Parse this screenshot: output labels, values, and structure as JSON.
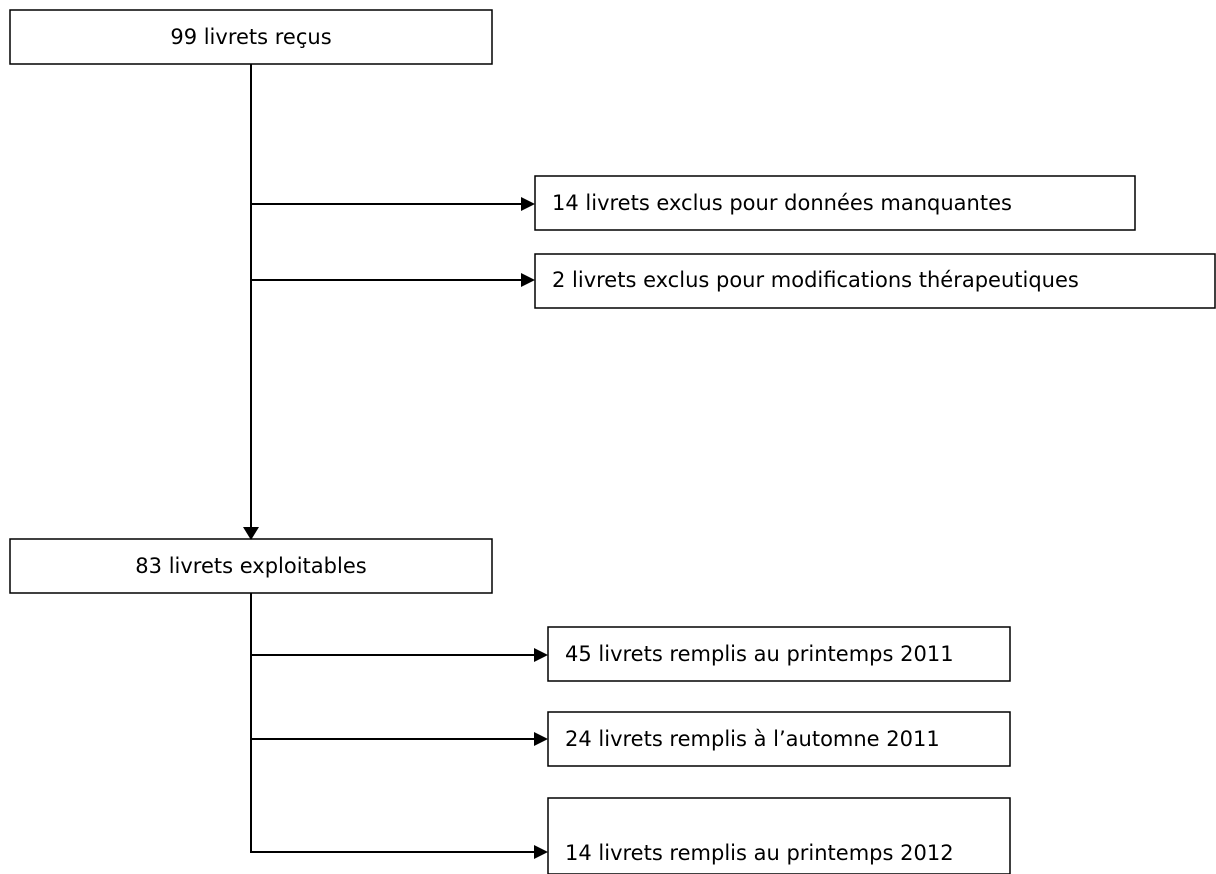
{
  "nodes": [
    {
      "label": "99 livrets reçus"
    },
    {
      "label": "14 livrets exclus pour données manquantes"
    },
    {
      "label": "2 livrets exclus pour modifications thérapeutiques"
    },
    {
      "label": "83 livrets exploitables"
    },
    {
      "label": "45 livrets remplis au printemps 2011"
    },
    {
      "label": "24 livrets remplis à l’automne 2011"
    },
    {
      "label": "14 livrets remplis au printemps 2012"
    }
  ]
}
